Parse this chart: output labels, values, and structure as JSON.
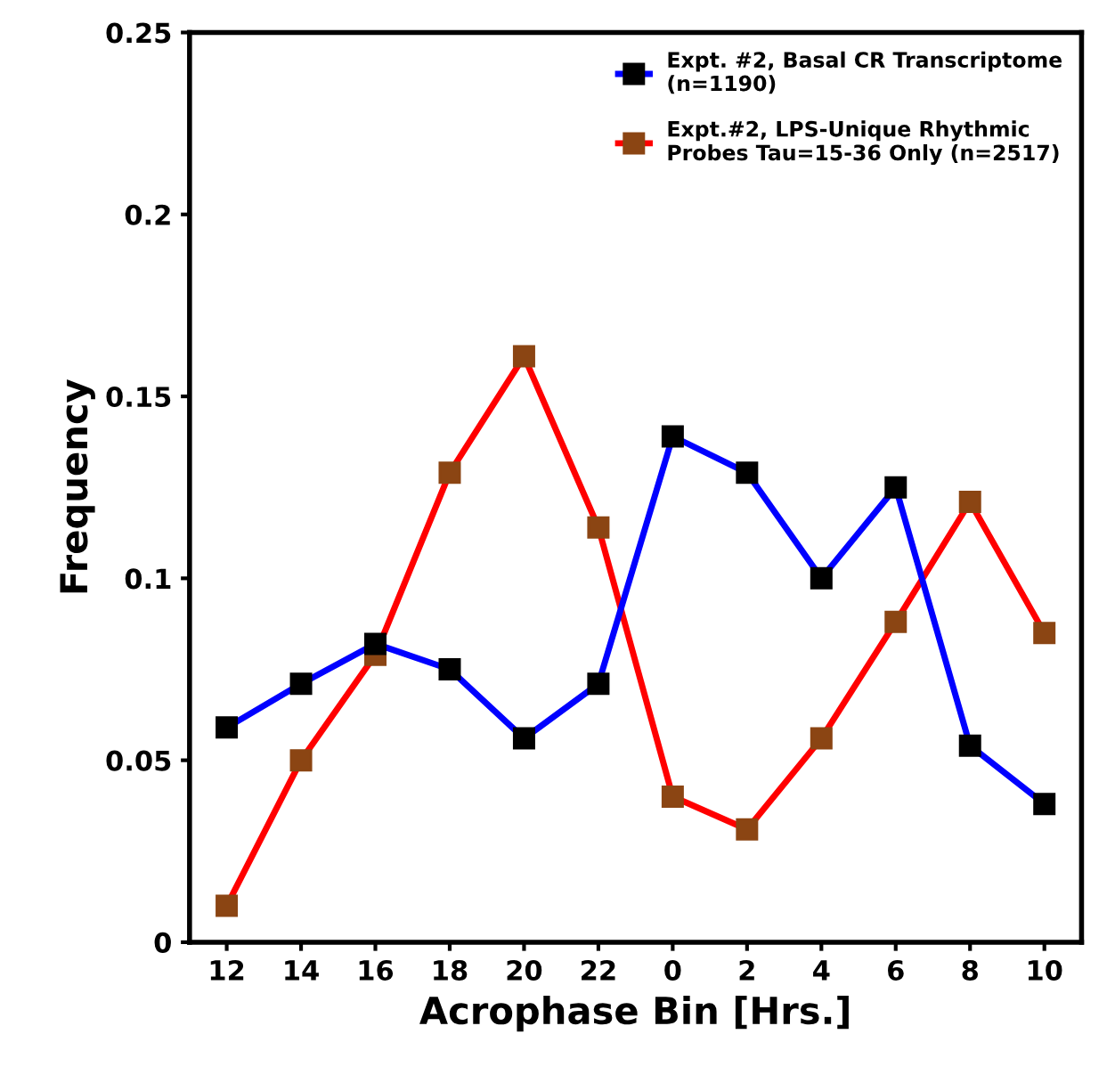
{
  "chart_data": {
    "type": "line",
    "xlabel": "Acrophase Bin [Hrs.]",
    "ylabel": "Frequency",
    "categories": [
      "12",
      "14",
      "16",
      "18",
      "20",
      "22",
      "0",
      "2",
      "4",
      "6",
      "8",
      "10"
    ],
    "series": [
      {
        "name": "Expt. #2, Basal CR Transcriptome\n(n=1190)",
        "color": "#0000ff",
        "values": [
          0.059,
          0.071,
          0.082,
          0.075,
          0.056,
          0.071,
          0.139,
          0.129,
          0.1,
          0.125,
          0.054,
          0.038
        ]
      },
      {
        "name": "Expt.#2, LPS-Unique Rhythmic\nProbes Tau=15-36 Only (n=2517)",
        "color": "#ff0000",
        "values": [
          0.01,
          0.05,
          0.079,
          0.129,
          0.161,
          0.114,
          0.04,
          0.031,
          0.056,
          0.088,
          0.121,
          0.085
        ]
      }
    ],
    "ylim": [
      0,
      0.25
    ],
    "yticks": [
      0,
      0.05,
      0.1,
      0.15,
      0.2,
      0.25
    ],
    "marker": "square",
    "legend": "top right",
    "grid": false
  }
}
